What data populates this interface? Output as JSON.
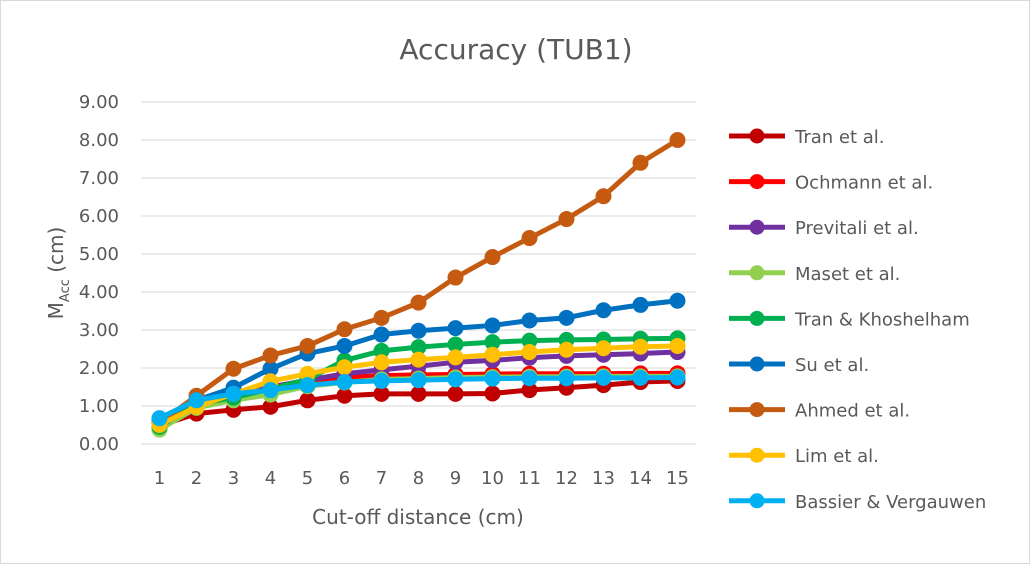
{
  "chart_data": {
    "type": "line",
    "title": "Accuracy (TUB1)",
    "xlabel": "Cut-off distance (cm)",
    "ylabel_main": "M",
    "ylabel_sub": "Acc",
    "ylabel_unit": " (cm)",
    "x": [
      1,
      2,
      3,
      4,
      5,
      6,
      7,
      8,
      9,
      10,
      11,
      12,
      13,
      14,
      15
    ],
    "ylim": [
      0,
      9
    ],
    "yticks": [
      "0.00",
      "1.00",
      "2.00",
      "3.00",
      "4.00",
      "5.00",
      "6.00",
      "7.00",
      "8.00",
      "9.00"
    ],
    "grid": true,
    "legend_position": "right",
    "series": [
      {
        "name": "Tran et al.",
        "color": "#c00000",
        "values": [
          0.48,
          0.8,
          0.9,
          0.98,
          1.15,
          1.27,
          1.32,
          1.32,
          1.32,
          1.33,
          1.42,
          1.48,
          1.55,
          1.63,
          1.66
        ]
      },
      {
        "name": "Ochmann et al.",
        "color": "#ff0000",
        "values": [
          0.55,
          1.1,
          1.3,
          1.48,
          1.62,
          1.75,
          1.8,
          1.82,
          1.83,
          1.84,
          1.85,
          1.85,
          1.85,
          1.86,
          1.86
        ]
      },
      {
        "name": "Previtali et al.",
        "color": "#7030a0",
        "values": [
          0.52,
          1.02,
          1.3,
          1.5,
          1.68,
          1.85,
          1.95,
          2.05,
          2.15,
          2.2,
          2.27,
          2.32,
          2.35,
          2.38,
          2.42
        ]
      },
      {
        "name": "Maset et al.",
        "color": "#92d050",
        "values": [
          0.38,
          0.95,
          1.15,
          1.3,
          1.52,
          1.62,
          1.7,
          1.72,
          1.75,
          1.76,
          1.77,
          1.77,
          1.78,
          1.78,
          1.78
        ]
      },
      {
        "name": "Tran & Khoshelham",
        "color": "#00b050",
        "values": [
          0.45,
          1.05,
          1.22,
          1.45,
          1.7,
          2.2,
          2.45,
          2.55,
          2.62,
          2.68,
          2.72,
          2.74,
          2.75,
          2.77,
          2.78
        ]
      },
      {
        "name": "Su et al.",
        "color": "#0070c0",
        "values": [
          0.65,
          1.15,
          1.48,
          1.98,
          2.38,
          2.58,
          2.88,
          2.98,
          3.05,
          3.12,
          3.25,
          3.32,
          3.52,
          3.66,
          3.77
        ]
      },
      {
        "name": "Ahmed et al.",
        "color": "#c55a11",
        "values": [
          0.55,
          1.27,
          1.98,
          2.33,
          2.58,
          3.02,
          3.32,
          3.72,
          4.38,
          4.92,
          5.42,
          5.92,
          6.52,
          7.4,
          8.0
        ]
      },
      {
        "name": "Lim et al.",
        "color": "#ffc000",
        "values": [
          0.5,
          0.98,
          1.32,
          1.65,
          1.85,
          2.02,
          2.15,
          2.22,
          2.28,
          2.35,
          2.42,
          2.48,
          2.52,
          2.56,
          2.58
        ]
      },
      {
        "name": "Bassier & Vergauwen",
        "color": "#00b0f0",
        "values": [
          0.68,
          1.15,
          1.32,
          1.42,
          1.55,
          1.63,
          1.66,
          1.68,
          1.7,
          1.72,
          1.73,
          1.73,
          1.74,
          1.74,
          1.75
        ]
      }
    ]
  }
}
